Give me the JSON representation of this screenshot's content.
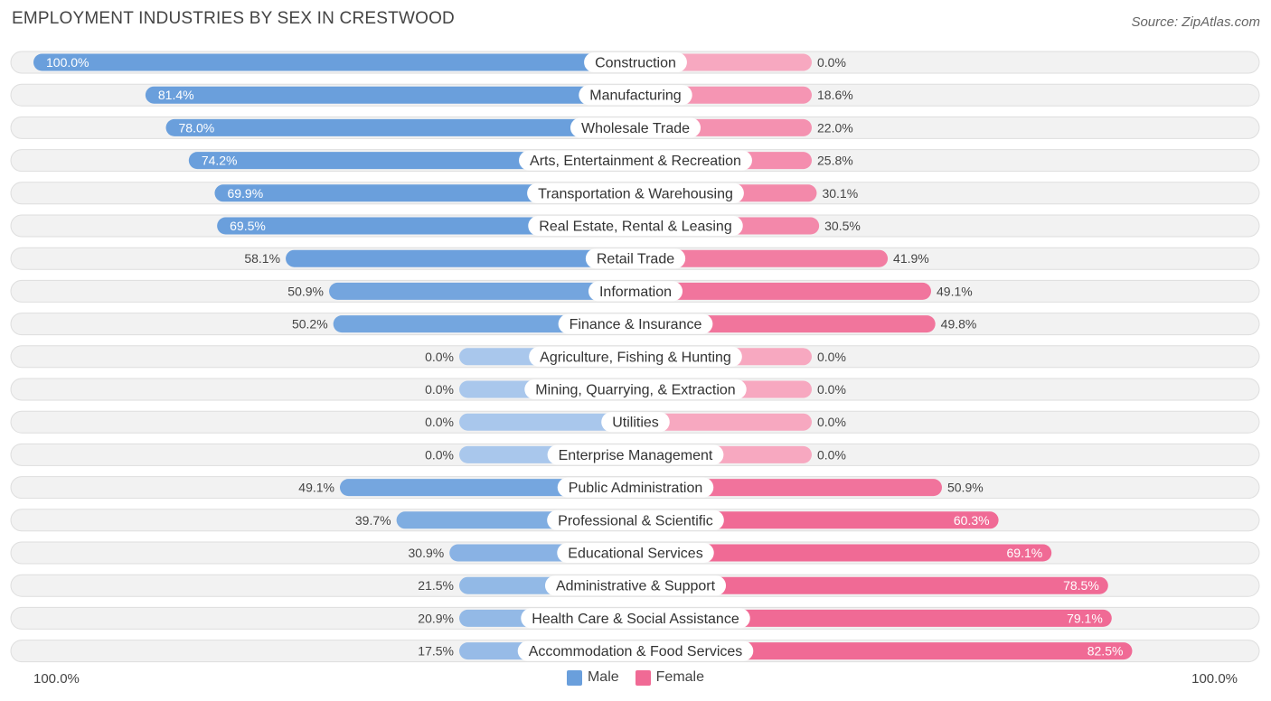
{
  "title": "EMPLOYMENT INDUSTRIES BY SEX IN CRESTWOOD",
  "source": "Source: ZipAtlas.com",
  "colors": {
    "male_strong": "#6a9fdc",
    "male_light": "#a9c7ec",
    "female_strong": "#f06a95",
    "female_light": "#f7a8c0",
    "row_bg": "#f2f2f2",
    "row_border": "#dedede"
  },
  "chart_data": {
    "type": "bar",
    "orientation": "horizontal-diverging",
    "title": "EMPLOYMENT INDUSTRIES BY SEX IN CRESTWOOD",
    "xlim": [
      -100,
      100
    ],
    "axis_left_label": "100.0%",
    "axis_right_label": "100.0%",
    "legend": [
      "Male",
      "Female"
    ],
    "legend_position": "bottom-center",
    "categories": [
      "Construction",
      "Manufacturing",
      "Wholesale Trade",
      "Arts, Entertainment & Recreation",
      "Transportation & Warehousing",
      "Real Estate, Rental & Leasing",
      "Retail Trade",
      "Information",
      "Finance & Insurance",
      "Agriculture, Fishing & Hunting",
      "Mining, Quarrying, & Extraction",
      "Utilities",
      "Enterprise Management",
      "Public Administration",
      "Professional & Scientific",
      "Educational Services",
      "Administrative & Support",
      "Health Care & Social Assistance",
      "Accommodation & Food Services"
    ],
    "series": [
      {
        "name": "Male",
        "values": [
          100.0,
          81.4,
          78.0,
          74.2,
          69.9,
          69.5,
          58.1,
          50.9,
          50.2,
          0.0,
          0.0,
          0.0,
          0.0,
          49.1,
          39.7,
          30.9,
          21.5,
          20.9,
          17.5
        ],
        "labels": [
          "100.0%",
          "81.4%",
          "78.0%",
          "74.2%",
          "69.9%",
          "69.5%",
          "58.1%",
          "50.9%",
          "50.2%",
          "0.0%",
          "0.0%",
          "0.0%",
          "0.0%",
          "49.1%",
          "39.7%",
          "30.9%",
          "21.5%",
          "20.9%",
          "17.5%"
        ]
      },
      {
        "name": "Female",
        "values": [
          0.0,
          18.6,
          22.0,
          25.8,
          30.1,
          30.5,
          41.9,
          49.1,
          49.8,
          0.0,
          0.0,
          0.0,
          0.0,
          50.9,
          60.3,
          69.1,
          78.5,
          79.1,
          82.5
        ],
        "labels": [
          "0.0%",
          "18.6%",
          "22.0%",
          "25.8%",
          "30.1%",
          "30.5%",
          "41.9%",
          "49.1%",
          "49.8%",
          "0.0%",
          "0.0%",
          "0.0%",
          "0.0%",
          "50.9%",
          "60.3%",
          "69.1%",
          "78.5%",
          "79.1%",
          "82.5%"
        ]
      }
    ]
  }
}
